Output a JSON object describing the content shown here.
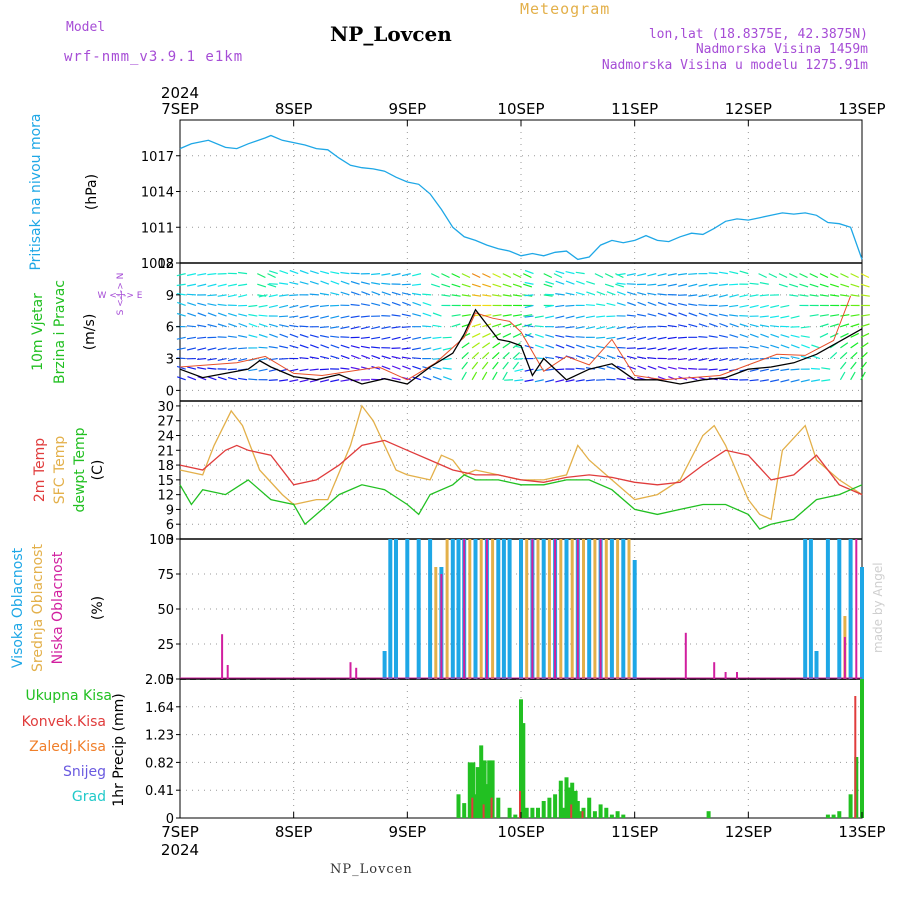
{
  "header": {
    "model_label": "Model",
    "model_name": "wrf-nmm_v3.9.1 e1km",
    "station": "NP_Lovcen",
    "meteogram": "Meteogram",
    "coords": "lon,lat (18.8375E, 42.3875N)",
    "elevation": "Nadmorska Visina 1459m",
    "elevation_model": "Nadmorska Visina u modelu 1275.91m",
    "year": "2024"
  },
  "footer": {
    "station": "NP_Lovcen",
    "year": "2024",
    "made_by": "made by Angel"
  },
  "colors": {
    "pressure": "#1ea7e6",
    "wind_title": "#22c022",
    "temp2m": "#e03c3c",
    "sfc_temp": "#e3b04a",
    "dewpt": "#22c022",
    "cloud_high": "#1ea7e6",
    "cloud_mid": "#e3b04a",
    "cloud_low": "#d11f9f",
    "total_precip": "#22c022",
    "conv_precip": "#e03c3c",
    "frozen": "#f07f2a",
    "snow": "#6a5ae0",
    "graupel": "#20c9c9",
    "purple": "#a64dd6"
  },
  "chart_data": [
    {
      "type": "line",
      "title": "Pritisak na nivou mora",
      "ylabel": "(hPa)",
      "x_categories": [
        "7SEP",
        "8SEP",
        "9SEP",
        "10SEP",
        "11SEP",
        "12SEP",
        "13SEP"
      ],
      "ylim": [
        1008,
        1020
      ],
      "yticks": [
        1008,
        1011,
        1014,
        1017
      ],
      "grid": true,
      "series": [
        {
          "name": "Pritisak na nivou mora",
          "x": [
            0,
            0.1,
            0.25,
            0.4,
            0.5,
            0.6,
            0.75,
            0.8,
            0.9,
            1.0,
            1.1,
            1.2,
            1.3,
            1.4,
            1.5,
            1.6,
            1.7,
            1.8,
            1.9,
            2.0,
            2.1,
            2.2,
            2.3,
            2.4,
            2.5,
            2.6,
            2.7,
            2.8,
            2.9,
            3.0,
            3.1,
            3.2,
            3.3,
            3.4,
            3.5,
            3.6,
            3.7,
            3.8,
            3.9,
            4.0,
            4.1,
            4.2,
            4.3,
            4.4,
            4.5,
            4.6,
            4.7,
            4.8,
            4.9,
            5.0,
            5.1,
            5.2,
            5.3,
            5.4,
            5.5,
            5.6,
            5.7,
            5.8,
            5.9,
            6.0
          ],
          "y": [
            1017.6,
            1018.0,
            1018.3,
            1017.7,
            1017.6,
            1018.0,
            1018.5,
            1018.7,
            1018.3,
            1018.1,
            1017.9,
            1017.6,
            1017.5,
            1016.8,
            1016.2,
            1016.0,
            1015.9,
            1015.7,
            1015.2,
            1014.8,
            1014.6,
            1013.8,
            1012.5,
            1011.0,
            1010.2,
            1009.9,
            1009.5,
            1009.2,
            1009.0,
            1008.6,
            1008.8,
            1008.6,
            1008.9,
            1009.0,
            1008.3,
            1008.5,
            1009.5,
            1009.9,
            1009.7,
            1009.9,
            1010.3,
            1009.9,
            1009.8,
            1010.2,
            1010.5,
            1010.4,
            1010.9,
            1011.5,
            1011.7,
            1011.6,
            1011.8,
            1012.0,
            1012.2,
            1012.1,
            1012.2,
            1012.0,
            1011.4,
            1011.3,
            1011.0,
            1008.3
          ]
        }
      ]
    },
    {
      "type": "line",
      "title": "10m Vjetar Brzina i Pravac",
      "ylabel": "(m/s)",
      "direction_legend": "W <-|-> E",
      "direction_legend_v": "S <-|-> N",
      "ylim": [
        -1,
        12
      ],
      "yticks": [
        0,
        3,
        6,
        9,
        12
      ],
      "grid": true,
      "series": [
        {
          "name": "wind speed",
          "x": [
            0,
            0.2,
            0.4,
            0.6,
            0.7,
            0.8,
            1.0,
            1.2,
            1.4,
            1.6,
            1.8,
            2.0,
            2.2,
            2.4,
            2.5,
            2.6,
            2.7,
            2.8,
            2.9,
            3.0,
            3.1,
            3.2,
            3.4,
            3.6,
            3.8,
            4.0,
            4.2,
            4.4,
            4.6,
            4.8,
            5.0,
            5.2,
            5.4,
            5.6,
            5.8,
            6.0
          ],
          "y": [
            2.0,
            1.2,
            1.6,
            2.0,
            2.8,
            2.2,
            1.3,
            1.0,
            1.5,
            0.6,
            1.1,
            0.6,
            2.2,
            3.5,
            5.3,
            7.6,
            6.2,
            4.8,
            4.6,
            4.2,
            1.4,
            3.0,
            1.0,
            2.0,
            2.5,
            1.0,
            1.0,
            0.6,
            1.0,
            1.2,
            2.0,
            2.2,
            2.6,
            3.4,
            4.6,
            5.8
          ]
        },
        {
          "name": "wind gust",
          "x": [
            0,
            0.25,
            0.5,
            0.75,
            1.0,
            1.25,
            1.5,
            1.75,
            2.0,
            2.25,
            2.5,
            2.6,
            2.75,
            2.9,
            3.0,
            3.2,
            3.4,
            3.6,
            3.8,
            4.0,
            4.25,
            4.5,
            4.75,
            5.0,
            5.25,
            5.5,
            5.75,
            5.9
          ],
          "y": [
            2.2,
            2.4,
            2.6,
            3.2,
            1.6,
            1.4,
            1.8,
            2.2,
            1.0,
            2.6,
            5.0,
            7.3,
            6.8,
            6.5,
            5.5,
            1.8,
            3.2,
            2.4,
            4.8,
            1.4,
            1.0,
            1.2,
            1.4,
            2.4,
            3.4,
            3.3,
            4.7,
            8.9
          ]
        }
      ]
    },
    {
      "type": "line",
      "ylabel": "(C)",
      "ylim": [
        3,
        31
      ],
      "yticks": [
        3,
        6,
        9,
        12,
        15,
        18,
        21,
        24,
        27,
        30
      ],
      "grid": true,
      "series": [
        {
          "name": "2m Temp",
          "x": [
            0,
            0.2,
            0.4,
            0.5,
            0.6,
            0.8,
            1.0,
            1.2,
            1.4,
            1.6,
            1.8,
            2.0,
            2.2,
            2.4,
            2.6,
            2.8,
            3.0,
            3.2,
            3.4,
            3.6,
            3.8,
            4.0,
            4.2,
            4.4,
            4.6,
            4.8,
            5.0,
            5.2,
            5.4,
            5.6,
            5.8,
            6.0
          ],
          "y": [
            18,
            17,
            21,
            22,
            21,
            20,
            14,
            15,
            18,
            22,
            23,
            21,
            19,
            17,
            16,
            16,
            15,
            14.5,
            15.5,
            16,
            15.5,
            14.5,
            14,
            14.5,
            18,
            21,
            20,
            15,
            16,
            20,
            14,
            12
          ]
        },
        {
          "name": "SFC Temp",
          "x": [
            0,
            0.2,
            0.3,
            0.45,
            0.55,
            0.7,
            0.9,
            1.0,
            1.2,
            1.3,
            1.5,
            1.6,
            1.7,
            1.9,
            2.0,
            2.2,
            2.3,
            2.4,
            2.5,
            2.6,
            2.8,
            3.0,
            3.2,
            3.4,
            3.5,
            3.6,
            3.8,
            4.0,
            4.2,
            4.4,
            4.6,
            4.7,
            4.8,
            5.0,
            5.1,
            5.2,
            5.3,
            5.5,
            5.6,
            5.8,
            6.0
          ],
          "y": [
            17,
            16,
            22,
            29,
            26,
            17,
            12,
            10,
            11,
            11,
            22,
            30,
            27,
            17,
            16,
            15,
            20,
            19,
            16,
            17,
            16,
            15,
            15,
            16,
            22,
            19,
            15,
            11,
            12,
            15,
            24,
            26,
            22,
            11,
            8,
            7,
            21,
            26,
            19,
            15,
            12
          ]
        },
        {
          "name": "dewpt Temp",
          "x": [
            0,
            0.1,
            0.2,
            0.4,
            0.6,
            0.8,
            1.0,
            1.1,
            1.2,
            1.4,
            1.6,
            1.8,
            2.0,
            2.1,
            2.2,
            2.4,
            2.5,
            2.6,
            2.8,
            3.0,
            3.2,
            3.4,
            3.6,
            3.8,
            4.0,
            4.2,
            4.4,
            4.6,
            4.8,
            5.0,
            5.1,
            5.2,
            5.4,
            5.6,
            5.8,
            6.0
          ],
          "y": [
            14,
            10,
            13,
            12,
            15,
            11,
            10,
            6,
            8,
            12,
            14,
            13,
            10,
            8,
            12,
            14,
            16,
            15,
            15,
            14,
            14,
            15,
            15,
            13,
            9,
            8,
            9,
            10,
            10,
            8,
            5,
            6,
            7,
            11,
            12,
            14
          ]
        }
      ]
    },
    {
      "type": "bar",
      "ylabel": "(%)",
      "ylim": [
        0,
        100
      ],
      "yticks": [
        0,
        25,
        50,
        75,
        100
      ],
      "grid": true,
      "series": [
        {
          "name": "Visoka Oblacnost",
          "x": [
            1.8,
            1.85,
            1.9,
            2.0,
            2.1,
            2.2,
            2.3,
            2.4,
            2.45,
            2.5,
            2.6,
            2.7,
            2.8,
            2.85,
            2.9,
            3.0,
            3.1,
            3.2,
            3.3,
            3.4,
            3.5,
            3.6,
            3.7,
            3.8,
            3.9,
            4.0,
            5.5,
            5.55,
            5.6,
            5.7,
            5.8,
            5.9,
            6.0
          ],
          "y": [
            20,
            100,
            100,
            100,
            100,
            100,
            80,
            100,
            100,
            100,
            100,
            100,
            100,
            100,
            100,
            100,
            100,
            100,
            100,
            100,
            100,
            100,
            100,
            100,
            100,
            85,
            100,
            100,
            20,
            100,
            100,
            100,
            80
          ]
        },
        {
          "name": "Srednja Oblacnost",
          "x": [
            2.25,
            2.35,
            2.55,
            2.65,
            2.75,
            3.05,
            3.15,
            3.25,
            3.35,
            3.45,
            3.55,
            3.65,
            3.75,
            3.85,
            3.95,
            5.85
          ],
          "y": [
            80,
            100,
            100,
            100,
            100,
            100,
            100,
            100,
            100,
            100,
            100,
            100,
            100,
            100,
            100,
            45
          ]
        },
        {
          "name": "Niska Oblacnost",
          "x": [
            0.37,
            0.42,
            1.5,
            1.55,
            2.3,
            2.5,
            2.7,
            3.1,
            3.3,
            3.5,
            3.7,
            4.45,
            4.7,
            4.8,
            4.9,
            5.85,
            5.95
          ],
          "y": [
            32,
            10,
            12,
            8,
            75,
            100,
            100,
            100,
            100,
            100,
            100,
            33,
            12,
            5,
            5,
            30,
            100
          ]
        }
      ]
    },
    {
      "type": "bar",
      "ylabel": "1hr Precip (mm)",
      "ylim": [
        0,
        2.05
      ],
      "yticks": [
        0,
        0.41,
        0.82,
        1.23,
        1.64,
        2.05
      ],
      "grid": true,
      "x_categories": [
        "7SEP",
        "8SEP",
        "9SEP",
        "10SEP",
        "11SEP",
        "12SEP",
        "13SEP"
      ],
      "series": [
        {
          "name": "Ukupna Kisa",
          "x": [
            2.45,
            2.5,
            2.55,
            2.58,
            2.6,
            2.62,
            2.65,
            2.68,
            2.7,
            2.72,
            2.75,
            2.8,
            2.9,
            2.95,
            3.0,
            3.02,
            3.05,
            3.1,
            3.15,
            3.2,
            3.25,
            3.3,
            3.35,
            3.38,
            3.4,
            3.42,
            3.45,
            3.48,
            3.5,
            3.52,
            3.55,
            3.6,
            3.65,
            3.7,
            3.75,
            3.8,
            3.85,
            3.9,
            4.65,
            5.7,
            5.75,
            5.8,
            5.9,
            5.95,
            6.0
          ],
          "y": [
            0.35,
            0.22,
            0.82,
            0.82,
            0.35,
            0.75,
            1.07,
            0.85,
            0.5,
            0.85,
            0.85,
            0.3,
            0.15,
            0.05,
            1.75,
            1.4,
            0.15,
            0.15,
            0.15,
            0.25,
            0.3,
            0.35,
            0.55,
            0.15,
            0.6,
            0.45,
            0.52,
            0.4,
            0.25,
            0.1,
            0.15,
            0.3,
            0.1,
            0.2,
            0.15,
            0.05,
            0.1,
            0.05,
            0.1,
            0.05,
            0.05,
            0.1,
            0.35,
            0.9,
            2.05
          ]
        },
        {
          "name": "Konvek.Kisa",
          "x": [
            2.58,
            2.68,
            2.75,
            3.0,
            3.45,
            3.55,
            5.95
          ],
          "y": [
            0.3,
            0.2,
            0.3,
            0.4,
            0.2,
            0.1,
            1.8
          ]
        },
        {
          "name": "Zaledj.Kisa",
          "x": [],
          "y": []
        },
        {
          "name": "Snijeg",
          "x": [],
          "y": []
        },
        {
          "name": "Grad",
          "x": [],
          "y": []
        }
      ]
    }
  ],
  "labels": {
    "p1_title": "Pritisak na nivou mora",
    "p1_unit": "(hPa)",
    "p2_title1": "10m Vjetar",
    "p2_title2": "Brzina i Pravac",
    "p2_unit": "(m/s)",
    "p2_dir": "W <-|-> E",
    "p2_dir_v": "S <-|-> N",
    "p3_t1": "2m Temp",
    "p3_t2": "SFC Temp",
    "p3_t3": "dewpt Temp",
    "p3_unit": "(C)",
    "p4_t1": "Visoka Oblacnost",
    "p4_t2": "Srednja Oblacnost",
    "p4_t3": "Niska Oblacnost",
    "p4_unit": "(%)",
    "p5_l1": "Ukupna Kisa",
    "p5_l2": "Konvek.Kisa",
    "p5_l3": "Zaledj.Kisa",
    "p5_l4": "Snijeg",
    "p5_l5": "Grad",
    "p5_unit": "1hr Precip (mm)"
  }
}
